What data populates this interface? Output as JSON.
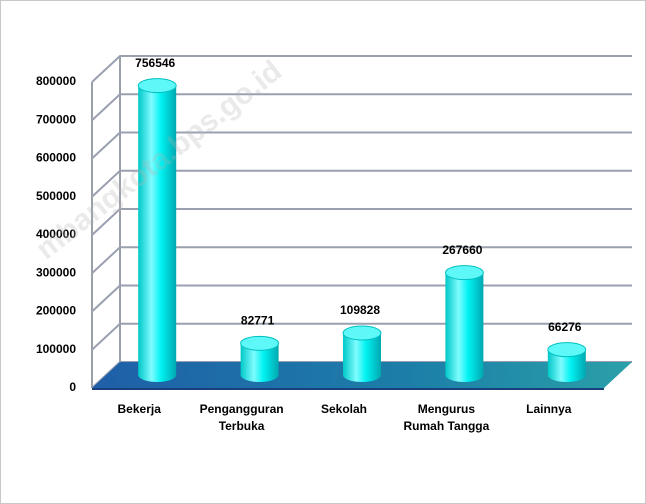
{
  "chart_data": {
    "type": "bar3d",
    "categories": [
      "Bekerja",
      "Pengangguran\nTerbuka",
      "Sekolah",
      "Mengurus\nRumah Tangga",
      "Lainnya"
    ],
    "values": [
      756546,
      82771,
      109828,
      267660,
      66276
    ],
    "color": "#00ffff",
    "ylim": [
      0,
      800000
    ],
    "yticks": [
      0,
      100000,
      200000,
      300000,
      400000,
      500000,
      600000,
      700000,
      800000
    ],
    "grid": true
  },
  "watermark": "mbangkota.bps.go.id"
}
